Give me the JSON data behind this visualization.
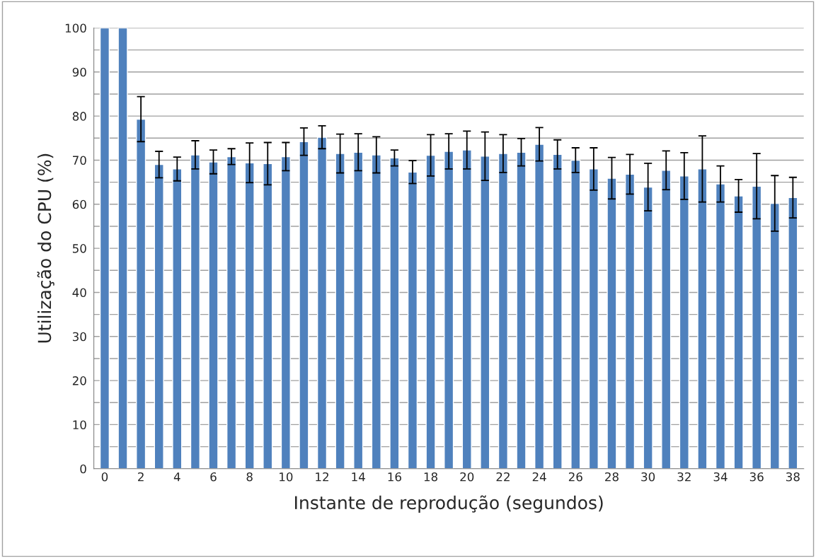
{
  "chart_data": {
    "type": "bar",
    "xlabel": "Instante de reprodução (segundos)",
    "ylabel": "Utilização do CPU (%)",
    "categories": [
      "0",
      null,
      "2",
      null,
      "4",
      null,
      "6",
      null,
      "8",
      null,
      "10",
      null,
      "12",
      null,
      "14",
      null,
      "16",
      null,
      "18",
      null,
      "20",
      null,
      "22",
      null,
      "24",
      null,
      "26",
      null,
      "28",
      null,
      "30",
      null,
      "32",
      null,
      "34",
      null,
      "36",
      null,
      "38"
    ],
    "values": [
      100,
      100,
      79.3,
      69,
      68,
      71.2,
      69.6,
      70.8,
      69.4,
      69.2,
      70.8,
      74.2,
      75.2,
      71.5,
      71.8,
      71.2,
      70.5,
      67.3,
      71.1,
      72,
      72.3,
      70.9,
      71.5,
      71.8,
      73.6,
      71.3,
      70,
      68,
      65.9,
      66.8,
      63.9,
      67.7,
      66.4,
      68,
      64.6,
      61.9,
      64.1,
      60.2,
      61.5
    ],
    "errors": [
      null,
      null,
      5.1,
      3,
      2.7,
      3.2,
      2.7,
      1.8,
      4.5,
      4.8,
      3.2,
      3.1,
      2.6,
      4.4,
      4.2,
      4.1,
      1.8,
      2.6,
      4.7,
      4,
      4.3,
      5.5,
      4.3,
      3.1,
      3.8,
      3.3,
      2.8,
      4.8,
      4.7,
      4.5,
      5.4,
      4.4,
      5.3,
      7.5,
      4.1,
      3.7,
      7.4,
      6.3,
      4.6
    ],
    "color": "#4f81bd",
    "ylim": [
      0,
      100
    ],
    "yticks": [
      0,
      {
        "value": 5,
        "label": null
      },
      10,
      {
        "value": 15,
        "label": null
      },
      20,
      {
        "value": 25,
        "label": null
      },
      30,
      {
        "value": 35,
        "label": null
      },
      40,
      {
        "value": 45,
        "label": null
      },
      50,
      {
        "value": 55,
        "label": null
      },
      60,
      {
        "value": 65,
        "label": null
      },
      70,
      {
        "value": 75,
        "label": null
      },
      80,
      {
        "value": 85,
        "label": null
      },
      90,
      {
        "value": 95,
        "label": null
      },
      100
    ],
    "grid": "y"
  }
}
